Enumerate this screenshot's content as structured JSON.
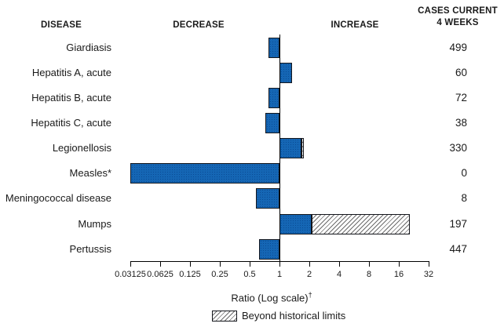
{
  "headers": {
    "disease": "DISEASE",
    "decrease": "DECREASE",
    "increase": "INCREASE",
    "cases_line1": "CASES CURRENT",
    "cases_line2": "4 WEEKS"
  },
  "chart_data": {
    "type": "bar",
    "orientation": "horizontal",
    "x_scale": "log2",
    "x_range": [
      0.03125,
      32
    ],
    "baseline": 1,
    "xlabel": "Ratio (Log scale)",
    "xlabel_dagger": "†",
    "x_tick_labels": [
      "0.03125",
      "0.0625",
      "0.125",
      "0.25",
      "0.5",
      "1",
      "2",
      "4",
      "8",
      "16",
      "32"
    ],
    "x_tick_values": [
      0.03125,
      0.0625,
      0.125,
      0.25,
      0.5,
      1,
      2,
      4,
      8,
      16,
      32
    ],
    "legend": {
      "beyond_label": "Beyond historical limits"
    },
    "rows": [
      {
        "label": "Giardiasis",
        "ratio": 0.78,
        "hatch_from": null,
        "cases": "499"
      },
      {
        "label": "Hepatitis A, acute",
        "ratio": 1.33,
        "hatch_from": null,
        "cases": "60"
      },
      {
        "label": "Hepatitis B, acute",
        "ratio": 0.78,
        "hatch_from": null,
        "cases": "72"
      },
      {
        "label": "Hepatitis C, acute",
        "ratio": 0.72,
        "hatch_from": null,
        "cases": "38"
      },
      {
        "label": "Legionellosis",
        "ratio": 1.76,
        "hatch_from": 1.67,
        "cases": "330"
      },
      {
        "label": "Measles*",
        "ratio": 0.03125,
        "hatch_from": null,
        "cases": "0"
      },
      {
        "label": "Meningococcal disease",
        "ratio": 0.58,
        "hatch_from": null,
        "cases": "8"
      },
      {
        "label": "Mumps",
        "ratio": 20.5,
        "hatch_from": 2.11,
        "cases": "197"
      },
      {
        "label": "Pertussis",
        "ratio": 0.62,
        "hatch_from": null,
        "cases": "447"
      }
    ],
    "colors": {
      "bar_fill": "#1566b4",
      "bar_dot": "#0a4c95",
      "bar_border": "#14161c",
      "hatch_line": "#6b6b6b",
      "axis": "#000000"
    }
  }
}
